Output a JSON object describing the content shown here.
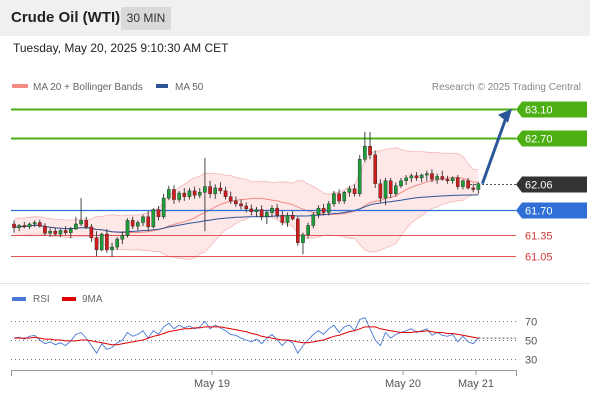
{
  "header": {
    "title": "Crude Oil (WTI)",
    "timeframe": "30 MIN"
  },
  "datetime": "Tuesday, May 20, 2025 9:10:30 AM CET",
  "legend": {
    "items": [
      {
        "label": "MA 20 + Bollinger Bands",
        "color": "#f28b82"
      },
      {
        "label": "MA 50",
        "color": "#2f5597"
      }
    ],
    "credit": "Research © 2025 Trading Central"
  },
  "rsi_legend": {
    "items": [
      {
        "label": "RSI",
        "color": "#4a78d6"
      },
      {
        "label": "9MA",
        "color": "#e00000"
      }
    ]
  },
  "chart_data": [
    {
      "type": "candlestick",
      "x_labels": [
        "May 19",
        "May 20",
        "May 21"
      ],
      "ylim": [
        60.75,
        63.25
      ],
      "levels": [
        {
          "value": 63.1,
          "label": "63.10",
          "kind": "resistance",
          "color": "#4caf14"
        },
        {
          "value": 62.7,
          "label": "62.70",
          "kind": "resistance",
          "color": "#4caf14"
        },
        {
          "value": 62.06,
          "label": "62.06",
          "kind": "last",
          "color": "#333333"
        },
        {
          "value": 61.7,
          "label": "61.70",
          "kind": "pivot",
          "color": "#2f6fd6"
        },
        {
          "value": 61.35,
          "label": "61.35",
          "kind": "support",
          "color": "#e05555"
        },
        {
          "value": 61.05,
          "label": "61.05",
          "kind": "support",
          "color": "#e05555"
        }
      ],
      "ohlc": [
        [
          61.5,
          61.55,
          61.38,
          61.45
        ],
        [
          61.45,
          61.5,
          61.4,
          61.48
        ],
        [
          61.48,
          61.53,
          61.44,
          61.46
        ],
        [
          61.46,
          61.52,
          61.43,
          61.5
        ],
        [
          61.5,
          61.55,
          61.46,
          61.52
        ],
        [
          61.52,
          61.56,
          61.45,
          61.47
        ],
        [
          61.47,
          61.51,
          61.34,
          61.37
        ],
        [
          61.37,
          61.44,
          61.32,
          61.4
        ],
        [
          61.4,
          61.45,
          61.34,
          61.36
        ],
        [
          61.36,
          61.43,
          61.32,
          61.41
        ],
        [
          61.41,
          61.47,
          61.35,
          61.38
        ],
        [
          61.38,
          61.46,
          61.3,
          61.43
        ],
        [
          61.43,
          61.6,
          61.42,
          61.5
        ],
        [
          61.5,
          61.86,
          61.47,
          61.55
        ],
        [
          61.55,
          61.6,
          61.43,
          61.46
        ],
        [
          61.46,
          61.5,
          61.25,
          61.31
        ],
        [
          61.31,
          61.4,
          61.05,
          61.14
        ],
        [
          61.14,
          61.38,
          61.12,
          61.36
        ],
        [
          61.36,
          61.43,
          61.1,
          61.14
        ],
        [
          61.14,
          61.24,
          61.04,
          61.18
        ],
        [
          61.18,
          61.32,
          61.14,
          61.29
        ],
        [
          61.29,
          61.4,
          61.22,
          61.34
        ],
        [
          61.34,
          61.58,
          61.31,
          61.55
        ],
        [
          61.55,
          61.6,
          61.43,
          61.47
        ],
        [
          61.47,
          61.55,
          61.41,
          61.52
        ],
        [
          61.52,
          61.63,
          61.47,
          61.6
        ],
        [
          61.6,
          61.68,
          61.4,
          61.46
        ],
        [
          61.46,
          61.72,
          61.44,
          61.7
        ],
        [
          61.7,
          61.75,
          61.55,
          61.6
        ],
        [
          61.6,
          61.92,
          61.57,
          61.86
        ],
        [
          61.86,
          62.03,
          61.83,
          61.98
        ],
        [
          61.98,
          62.04,
          61.78,
          61.84
        ],
        [
          61.84,
          61.96,
          61.8,
          61.93
        ],
        [
          61.93,
          62.0,
          61.82,
          61.88
        ],
        [
          61.88,
          62.0,
          61.84,
          61.96
        ],
        [
          61.96,
          62.02,
          61.85,
          61.9
        ],
        [
          61.9,
          62.0,
          61.86,
          61.94
        ],
        [
          61.94,
          62.42,
          61.4,
          62.02
        ],
        [
          62.02,
          62.1,
          61.86,
          61.92
        ],
        [
          61.92,
          62.05,
          61.85,
          62.0
        ],
        [
          62.0,
          62.08,
          61.92,
          61.96
        ],
        [
          61.96,
          62.02,
          61.84,
          61.88
        ],
        [
          61.88,
          61.95,
          61.78,
          61.82
        ],
        [
          61.82,
          61.88,
          61.74,
          61.78
        ],
        [
          61.78,
          61.84,
          61.7,
          61.75
        ],
        [
          61.75,
          61.8,
          61.66,
          61.71
        ],
        [
          61.71,
          61.77,
          61.62,
          61.67
        ],
        [
          61.67,
          61.74,
          61.6,
          61.7
        ],
        [
          61.7,
          61.76,
          61.55,
          61.6
        ],
        [
          61.6,
          61.7,
          61.5,
          61.66
        ],
        [
          61.66,
          61.76,
          61.6,
          61.72
        ],
        [
          61.72,
          61.78,
          61.58,
          61.62
        ],
        [
          61.62,
          61.68,
          61.48,
          61.52
        ],
        [
          61.52,
          61.66,
          61.46,
          61.62
        ],
        [
          61.62,
          61.68,
          61.55,
          61.57
        ],
        [
          61.57,
          61.6,
          61.2,
          61.24
        ],
        [
          61.24,
          61.38,
          61.08,
          61.35
        ],
        [
          61.35,
          61.52,
          61.3,
          61.48
        ],
        [
          61.48,
          61.66,
          61.44,
          61.63
        ],
        [
          61.63,
          61.76,
          61.58,
          61.72
        ],
        [
          61.72,
          61.78,
          61.62,
          61.66
        ],
        [
          61.66,
          61.82,
          61.62,
          61.78
        ],
        [
          61.78,
          61.96,
          61.74,
          61.92
        ],
        [
          61.92,
          61.98,
          61.78,
          61.82
        ],
        [
          61.82,
          61.96,
          61.78,
          61.94
        ],
        [
          61.94,
          62.03,
          61.88,
          61.99
        ],
        [
          61.99,
          62.05,
          61.88,
          61.92
        ],
        [
          61.92,
          62.46,
          61.88,
          62.4
        ],
        [
          62.4,
          62.78,
          62.36,
          62.58
        ],
        [
          62.58,
          62.78,
          62.4,
          62.46
        ],
        [
          62.46,
          62.52,
          62.0,
          62.06
        ],
        [
          62.06,
          62.12,
          61.8,
          61.86
        ],
        [
          61.86,
          62.14,
          61.76,
          62.1
        ],
        [
          62.1,
          62.14,
          61.86,
          61.92
        ],
        [
          61.92,
          62.08,
          61.88,
          62.03
        ],
        [
          62.03,
          62.14,
          62.0,
          62.1
        ],
        [
          62.1,
          62.18,
          62.04,
          62.14
        ],
        [
          62.14,
          62.2,
          62.08,
          62.17
        ],
        [
          62.17,
          62.22,
          62.1,
          62.14
        ],
        [
          62.14,
          62.2,
          62.08,
          62.18
        ],
        [
          62.18,
          62.24,
          62.1,
          62.2
        ],
        [
          62.2,
          62.26,
          62.08,
          62.12
        ],
        [
          62.12,
          62.2,
          62.06,
          62.16
        ],
        [
          62.16,
          62.24,
          62.1,
          62.12
        ],
        [
          62.12,
          62.17,
          62.06,
          62.1
        ],
        [
          62.1,
          62.16,
          62.06,
          62.14
        ],
        [
          62.14,
          62.18,
          61.98,
          62.02
        ],
        [
          62.02,
          62.12,
          61.98,
          62.1
        ],
        [
          62.1,
          62.14,
          61.98,
          62.0
        ],
        [
          62.0,
          62.06,
          61.94,
          61.98
        ],
        [
          61.98,
          62.08,
          61.92,
          62.06
        ]
      ],
      "forecast": {
        "from": 62.06,
        "to": 63.1
      }
    },
    {
      "type": "line",
      "x_labels": [
        "May 19",
        "May 20",
        "May 21"
      ],
      "ylim": [
        20,
        80
      ],
      "y_ticks": [
        70,
        50,
        30
      ],
      "series": [
        {
          "name": "RSI",
          "color": "#4a78d6",
          "values": [
            52,
            53,
            51,
            54,
            55,
            50,
            46,
            48,
            45,
            47,
            44,
            49,
            56,
            58,
            52,
            44,
            36,
            46,
            40,
            42,
            47,
            50,
            58,
            54,
            56,
            60,
            52,
            60,
            56,
            64,
            68,
            62,
            66,
            63,
            65,
            62,
            64,
            70,
            62,
            66,
            63,
            60,
            56,
            55,
            52,
            50,
            48,
            51,
            46,
            52,
            56,
            50,
            44,
            50,
            47,
            36,
            44,
            50,
            56,
            60,
            56,
            62,
            66,
            58,
            64,
            66,
            60,
            72,
            74,
            62,
            50,
            44,
            58,
            52,
            56,
            58,
            60,
            62,
            58,
            60,
            62,
            55,
            58,
            55,
            54,
            56,
            48,
            54,
            48,
            46,
            52
          ]
        },
        {
          "name": "9MA",
          "color": "#e00000",
          "values": [
            52,
            52,
            52,
            52,
            53,
            52,
            51,
            51,
            50,
            50,
            49,
            49,
            49,
            50,
            50,
            49,
            48,
            47,
            46,
            45,
            45,
            46,
            47,
            48,
            49,
            50,
            52,
            54,
            55,
            57,
            59,
            60,
            61,
            62,
            62,
            63,
            63,
            64,
            64,
            64,
            64,
            63,
            62,
            61,
            60,
            59,
            57,
            56,
            54,
            53,
            52,
            51,
            50,
            50,
            49,
            48,
            47,
            47,
            48,
            49,
            50,
            52,
            54,
            55,
            57,
            59,
            60,
            62,
            64,
            64,
            64,
            62,
            61,
            60,
            59,
            58,
            58,
            58,
            59,
            59,
            60,
            59,
            58,
            58,
            57,
            57,
            56,
            55,
            54,
            53,
            52
          ]
        }
      ]
    }
  ]
}
